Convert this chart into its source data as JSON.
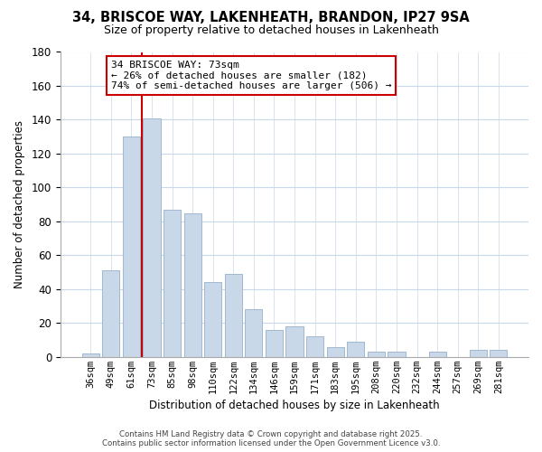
{
  "title_line1": "34, BRISCOE WAY, LAKENHEATH, BRANDON, IP27 9SA",
  "title_line2": "Size of property relative to detached houses in Lakenheath",
  "xlabel": "Distribution of detached houses by size in Lakenheath",
  "ylabel": "Number of detached properties",
  "categories": [
    "36sqm",
    "49sqm",
    "61sqm",
    "73sqm",
    "85sqm",
    "98sqm",
    "110sqm",
    "122sqm",
    "134sqm",
    "146sqm",
    "159sqm",
    "171sqm",
    "183sqm",
    "195sqm",
    "208sqm",
    "220sqm",
    "232sqm",
    "244sqm",
    "257sqm",
    "269sqm",
    "281sqm"
  ],
  "values": [
    2,
    51,
    130,
    141,
    87,
    85,
    44,
    49,
    28,
    16,
    18,
    12,
    6,
    9,
    3,
    3,
    0,
    3,
    0,
    4,
    4
  ],
  "bar_color": "#c8d8e8",
  "bar_edge_color": "#a0b8d0",
  "vline_color": "#cc0000",
  "ylim": [
    0,
    180
  ],
  "yticks": [
    0,
    20,
    40,
    60,
    80,
    100,
    120,
    140,
    160,
    180
  ],
  "annotation_title": "34 BRISCOE WAY: 73sqm",
  "annotation_line2": "← 26% of detached houses are smaller (182)",
  "annotation_line3": "74% of semi-detached houses are larger (506) →",
  "annotation_box_color": "#ffffff",
  "annotation_box_edge": "#cc0000",
  "footer_line1": "Contains HM Land Registry data © Crown copyright and database right 2025.",
  "footer_line2": "Contains public sector information licensed under the Open Government Licence v3.0.",
  "background_color": "#ffffff",
  "grid_color": "#c8d8e8"
}
